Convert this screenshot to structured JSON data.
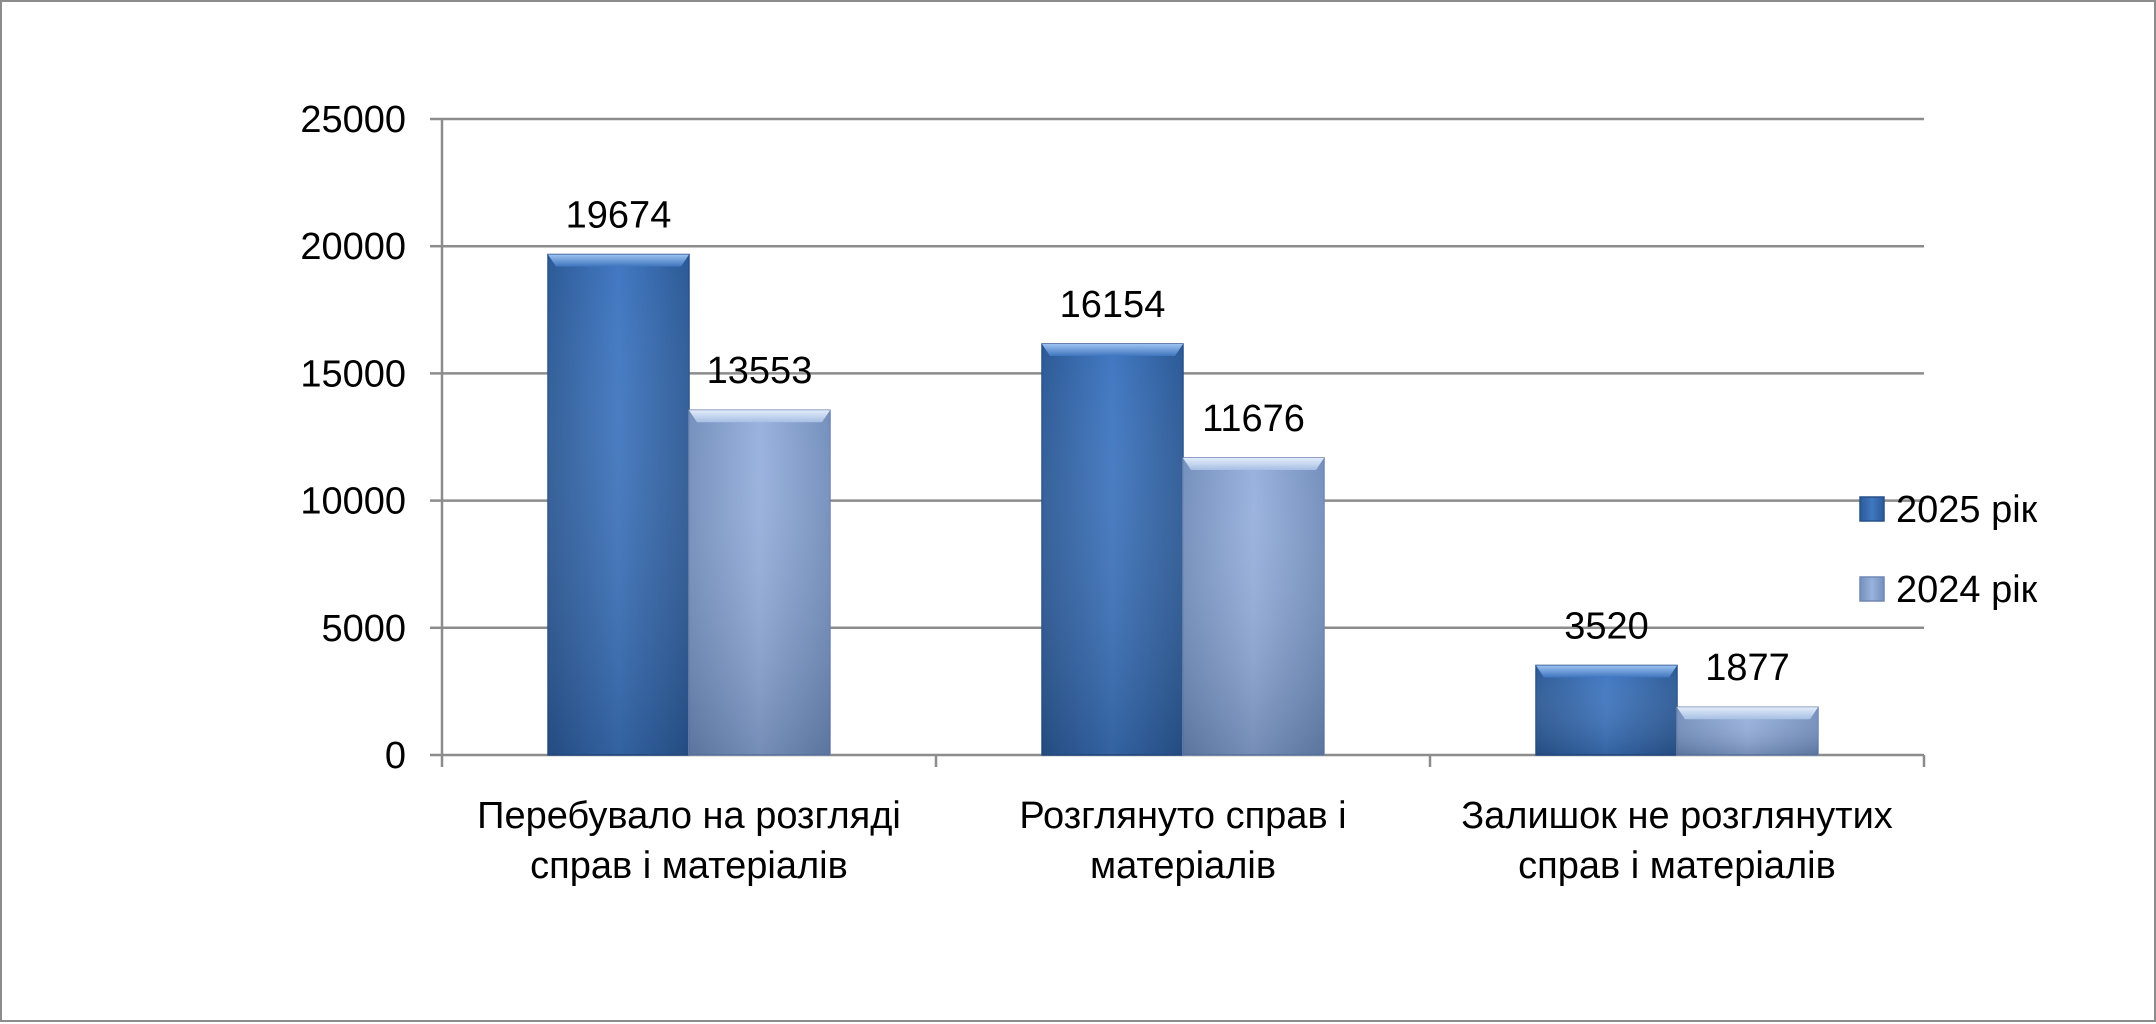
{
  "chart_data": {
    "type": "bar",
    "title": "",
    "xlabel": "",
    "ylabel": "",
    "ylim": [
      0,
      25000
    ],
    "yticks": [
      0,
      5000,
      10000,
      15000,
      20000,
      25000
    ],
    "grid": true,
    "legend_position": "right",
    "categories": [
      [
        "Перебувало на розгляді",
        "справ і матеріалів"
      ],
      [
        "Розглянуто справ і",
        "матеріалів"
      ],
      [
        "Залишок не розглянутих",
        "справ і матеріалів"
      ]
    ],
    "series": [
      {
        "name": "2025 рік",
        "values": [
          19674,
          16154,
          3520
        ],
        "color": "#3a6fb5"
      },
      {
        "name": "2024 рік",
        "values": [
          13553,
          11676,
          1877
        ],
        "color": "#8ba6d4"
      }
    ]
  }
}
